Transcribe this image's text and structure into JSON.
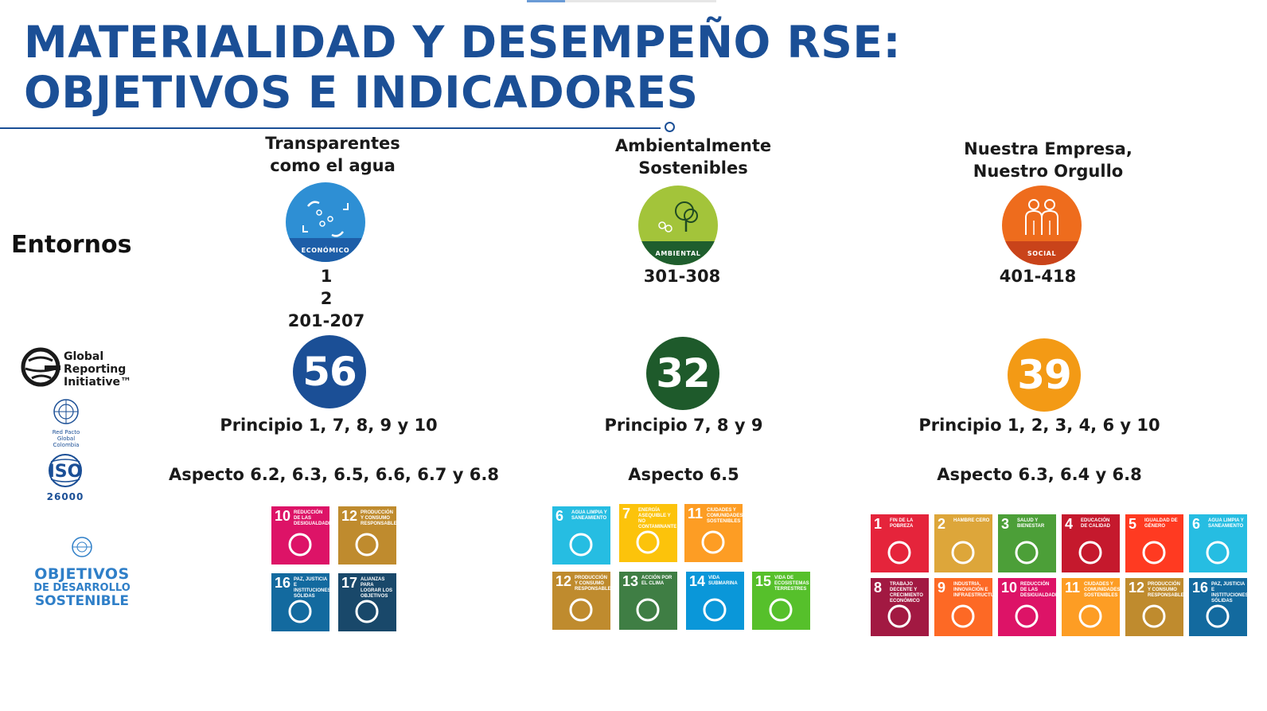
{
  "slide": {
    "title_line1": "MATERIALIDAD Y DESEMPEÑO RSE:",
    "title_line2": "OBJETIVOS E INDICADORES",
    "entornos_label": "Entornos"
  },
  "frameworks": {
    "gri": {
      "line1": "Global",
      "line2": "Reporting",
      "line3": "Initiative™"
    },
    "global_compact": {
      "line1": "Red Pacto Global",
      "line2": "Colombia"
    },
    "iso": {
      "name": "ISO",
      "number": "26000"
    },
    "ods": {
      "line1": "OBJETIVOS",
      "line2": "DE DESARROLLO",
      "line3": "SOSTENIBLE"
    }
  },
  "columns": [
    {
      "heading_line1": "Transparentes",
      "heading_line2": "como el agua",
      "pillar_label": "ECONÓMICO",
      "pillar_color": "#2e8fd4",
      "band_color": "#1d5ea8",
      "gri_line1": "1",
      "gri_line2": "2",
      "gri_line3": "201-207",
      "count": "56",
      "count_color": "#1b4f96",
      "principio": "Principio 1, 7, 8, 9 y 10",
      "aspecto": "Aspecto 6.2, 6.3, 6.5, 6.6, 6.7 y 6.8"
    },
    {
      "heading_line1": "Ambientalmente",
      "heading_line2": "Sostenibles",
      "pillar_label": "AMBIENTAL",
      "pillar_color": "#a3c43a",
      "band_color": "#1f5e2e",
      "gri_line1": "301-308",
      "count": "32",
      "count_color": "#1e5a2b",
      "principio": "Principio 7, 8 y 9",
      "aspecto": "Aspecto 6.5"
    },
    {
      "heading_line1": "Nuestra Empresa,",
      "heading_line2": "Nuestro Orgullo",
      "pillar_label": "SOCIAL",
      "pillar_color": "#ee6c1d",
      "band_color": "#c9431a",
      "gri_line1": "401-418",
      "count": "39",
      "count_color": "#f39a15",
      "principio": "Principio 1, 2, 3, 4, 6 y 10",
      "aspecto": "Aspecto 6.3, 6.4 y 6.8"
    }
  ],
  "sdg_groups": [
    [
      {
        "num": "10",
        "label": "Reducción de las desigualdades",
        "color": "#dd1367"
      },
      {
        "num": "12",
        "label": "Producción y consumo responsables",
        "color": "#bf8b2e"
      },
      {
        "num": "16",
        "label": "Paz, justicia e instituciones sólidas",
        "color": "#136a9f"
      },
      {
        "num": "17",
        "label": "Alianzas para lograr los objetivos",
        "color": "#19486a"
      }
    ],
    [
      {
        "num": "6",
        "label": "Agua limpia y saneamiento",
        "color": "#26bde2"
      },
      {
        "num": "7",
        "label": "Energía asequible y no contaminante",
        "color": "#fcc30b"
      },
      {
        "num": "11",
        "label": "Ciudades y comunidades sostenibles",
        "color": "#fd9d24"
      },
      {
        "num": "12",
        "label": "Producción y consumo responsables",
        "color": "#bf8b2e"
      },
      {
        "num": "13",
        "label": "Acción por el clima",
        "color": "#3f7e44"
      },
      {
        "num": "14",
        "label": "Vida submarina",
        "color": "#0a97d9"
      },
      {
        "num": "15",
        "label": "Vida de ecosistemas terrestres",
        "color": "#56c02b"
      }
    ],
    [
      {
        "num": "1",
        "label": "Fin de la pobreza",
        "color": "#e5243b"
      },
      {
        "num": "2",
        "label": "Hambre cero",
        "color": "#dda63a"
      },
      {
        "num": "3",
        "label": "Salud y bienestar",
        "color": "#4c9f38"
      },
      {
        "num": "4",
        "label": "Educación de calidad",
        "color": "#c5192d"
      },
      {
        "num": "5",
        "label": "Igualdad de género",
        "color": "#ff3a21"
      },
      {
        "num": "6",
        "label": "Agua limpia y saneamiento",
        "color": "#26bde2"
      },
      {
        "num": "8",
        "label": "Trabajo decente y crecimiento económico",
        "color": "#a21942"
      },
      {
        "num": "9",
        "label": "Industria, innovación e infraestructura",
        "color": "#fd6925"
      },
      {
        "num": "10",
        "label": "Reducción de las desigualdades",
        "color": "#dd1367"
      },
      {
        "num": "11",
        "label": "Ciudades y comunidades sostenibles",
        "color": "#fd9d24"
      },
      {
        "num": "12",
        "label": "Producción y consumo responsables",
        "color": "#bf8b2e"
      },
      {
        "num": "16",
        "label": "Paz, justicia e instituciones sólidas",
        "color": "#136a9f"
      }
    ]
  ]
}
